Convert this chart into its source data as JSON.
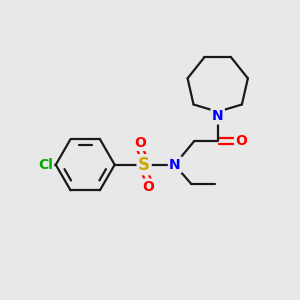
{
  "bg_color": "#e8e8e8",
  "bond_color": "#1a1a1a",
  "n_color": "#0000ff",
  "o_color": "#ff0000",
  "s_color": "#ccaa00",
  "cl_color": "#00aa00",
  "lw": 1.6,
  "fs": 10,
  "xlim": [
    0,
    10
  ],
  "ylim": [
    0,
    10
  ]
}
